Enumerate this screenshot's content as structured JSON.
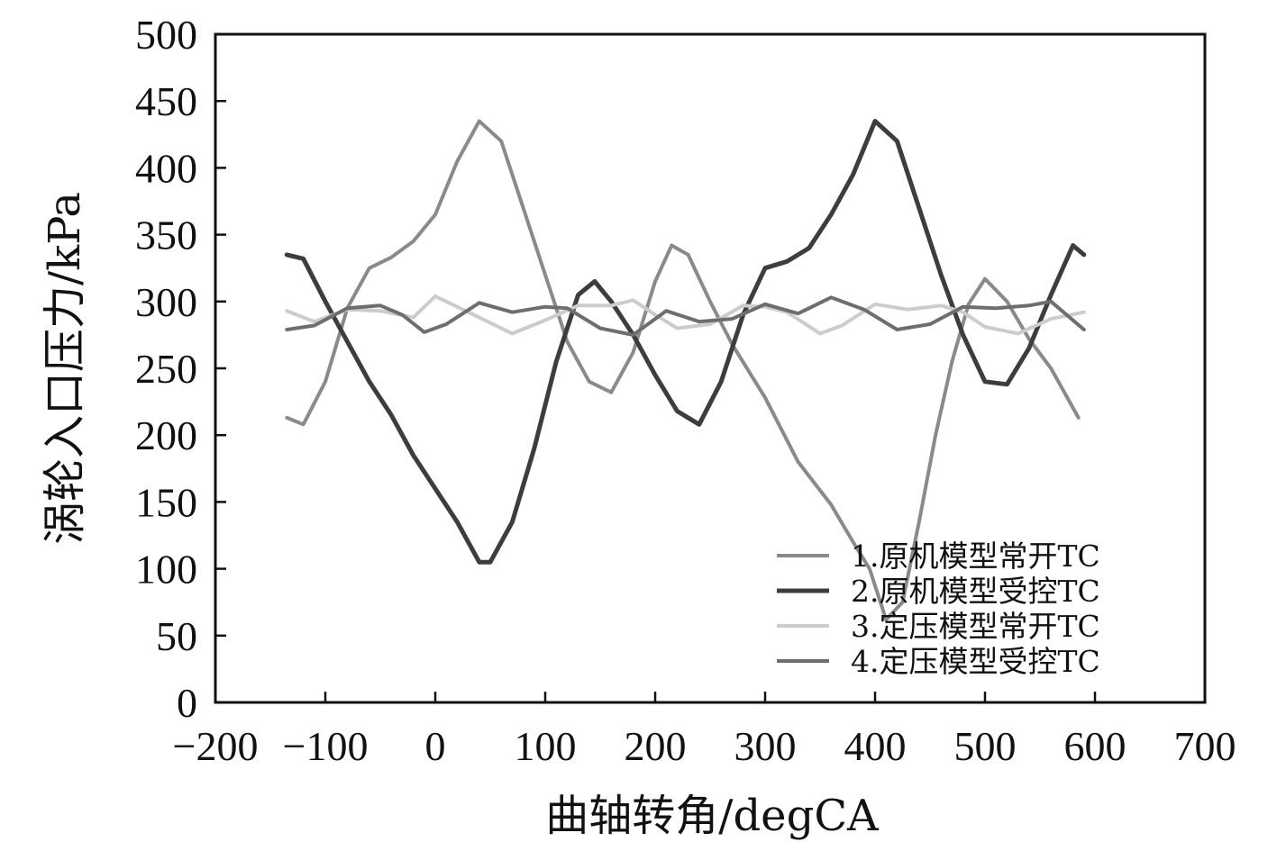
{
  "chart_data": {
    "type": "line",
    "xlabel": "曲轴转角/degCA",
    "ylabel": "涡轮入口压力/kPa",
    "xlim": [
      -200,
      700
    ],
    "ylim": [
      0,
      500
    ],
    "xticks": [
      -200,
      -100,
      0,
      100,
      200,
      300,
      400,
      500,
      600,
      700
    ],
    "xtick_labels": [
      "−200",
      "−100",
      "0",
      "100",
      "200",
      "300",
      "400",
      "500",
      "600",
      "700"
    ],
    "yticks": [
      0,
      50,
      100,
      150,
      200,
      250,
      300,
      350,
      400,
      450,
      500
    ],
    "grid": false,
    "legend_position": "bottom-right",
    "series": [
      {
        "name": "1.原机模型常开TC",
        "color": "#8a8a8a",
        "width": 4,
        "points": [
          [
            -135,
            213
          ],
          [
            -120,
            208
          ],
          [
            -100,
            240
          ],
          [
            -80,
            295
          ],
          [
            -60,
            325
          ],
          [
            -40,
            333
          ],
          [
            -20,
            345
          ],
          [
            0,
            365
          ],
          [
            20,
            405
          ],
          [
            40,
            435
          ],
          [
            60,
            420
          ],
          [
            80,
            370
          ],
          [
            100,
            320
          ],
          [
            120,
            270
          ],
          [
            140,
            240
          ],
          [
            160,
            232
          ],
          [
            180,
            262
          ],
          [
            200,
            315
          ],
          [
            215,
            342
          ],
          [
            230,
            335
          ],
          [
            250,
            300
          ],
          [
            270,
            268
          ],
          [
            300,
            228
          ],
          [
            330,
            180
          ],
          [
            360,
            148
          ],
          [
            380,
            120
          ],
          [
            395,
            100
          ],
          [
            410,
            62
          ],
          [
            425,
            75
          ],
          [
            440,
            135
          ],
          [
            455,
            200
          ],
          [
            470,
            255
          ],
          [
            485,
            298
          ],
          [
            500,
            317
          ],
          [
            520,
            300
          ],
          [
            540,
            272
          ],
          [
            560,
            250
          ],
          [
            585,
            213
          ]
        ]
      },
      {
        "name": "2.原机模型受控TC",
        "color": "#3d3d3d",
        "width": 5,
        "points": [
          [
            -135,
            335
          ],
          [
            -120,
            332
          ],
          [
            -100,
            300
          ],
          [
            -80,
            270
          ],
          [
            -60,
            240
          ],
          [
            -40,
            215
          ],
          [
            -20,
            185
          ],
          [
            0,
            160
          ],
          [
            20,
            135
          ],
          [
            40,
            105
          ],
          [
            50,
            105
          ],
          [
            70,
            135
          ],
          [
            90,
            190
          ],
          [
            110,
            255
          ],
          [
            130,
            305
          ],
          [
            145,
            315
          ],
          [
            160,
            300
          ],
          [
            180,
            275
          ],
          [
            200,
            245
          ],
          [
            220,
            218
          ],
          [
            240,
            208
          ],
          [
            260,
            240
          ],
          [
            280,
            290
          ],
          [
            300,
            325
          ],
          [
            320,
            330
          ],
          [
            340,
            340
          ],
          [
            360,
            365
          ],
          [
            380,
            395
          ],
          [
            400,
            435
          ],
          [
            420,
            420
          ],
          [
            440,
            370
          ],
          [
            460,
            320
          ],
          [
            480,
            275
          ],
          [
            500,
            240
          ],
          [
            520,
            238
          ],
          [
            540,
            265
          ],
          [
            560,
            305
          ],
          [
            580,
            342
          ],
          [
            590,
            335
          ]
        ]
      },
      {
        "name": "3.定压模型常开TC",
        "color": "#cccccc",
        "width": 4,
        "points": [
          [
            -135,
            293
          ],
          [
            -110,
            285
          ],
          [
            -80,
            294
          ],
          [
            -50,
            293
          ],
          [
            -20,
            288
          ],
          [
            0,
            304
          ],
          [
            20,
            296
          ],
          [
            40,
            288
          ],
          [
            70,
            276
          ],
          [
            100,
            286
          ],
          [
            130,
            297
          ],
          [
            160,
            297
          ],
          [
            180,
            301
          ],
          [
            200,
            290
          ],
          [
            220,
            280
          ],
          [
            250,
            283
          ],
          [
            280,
            297
          ],
          [
            300,
            296
          ],
          [
            320,
            292
          ],
          [
            350,
            276
          ],
          [
            370,
            282
          ],
          [
            400,
            298
          ],
          [
            430,
            294
          ],
          [
            460,
            297
          ],
          [
            480,
            292
          ],
          [
            500,
            281
          ],
          [
            530,
            276
          ],
          [
            560,
            287
          ],
          [
            590,
            292
          ]
        ]
      },
      {
        "name": "4.定压模型受控TC",
        "color": "#6e6e6e",
        "width": 4,
        "points": [
          [
            -135,
            279
          ],
          [
            -110,
            282
          ],
          [
            -80,
            295
          ],
          [
            -50,
            297
          ],
          [
            -30,
            290
          ],
          [
            -10,
            277
          ],
          [
            10,
            283
          ],
          [
            40,
            299
          ],
          [
            70,
            292
          ],
          [
            100,
            296
          ],
          [
            120,
            295
          ],
          [
            150,
            280
          ],
          [
            180,
            275
          ],
          [
            210,
            293
          ],
          [
            240,
            285
          ],
          [
            270,
            287
          ],
          [
            300,
            298
          ],
          [
            330,
            291
          ],
          [
            360,
            303
          ],
          [
            390,
            294
          ],
          [
            420,
            279
          ],
          [
            450,
            283
          ],
          [
            480,
            296
          ],
          [
            510,
            295
          ],
          [
            540,
            297
          ],
          [
            560,
            300
          ],
          [
            590,
            279
          ]
        ]
      }
    ]
  }
}
